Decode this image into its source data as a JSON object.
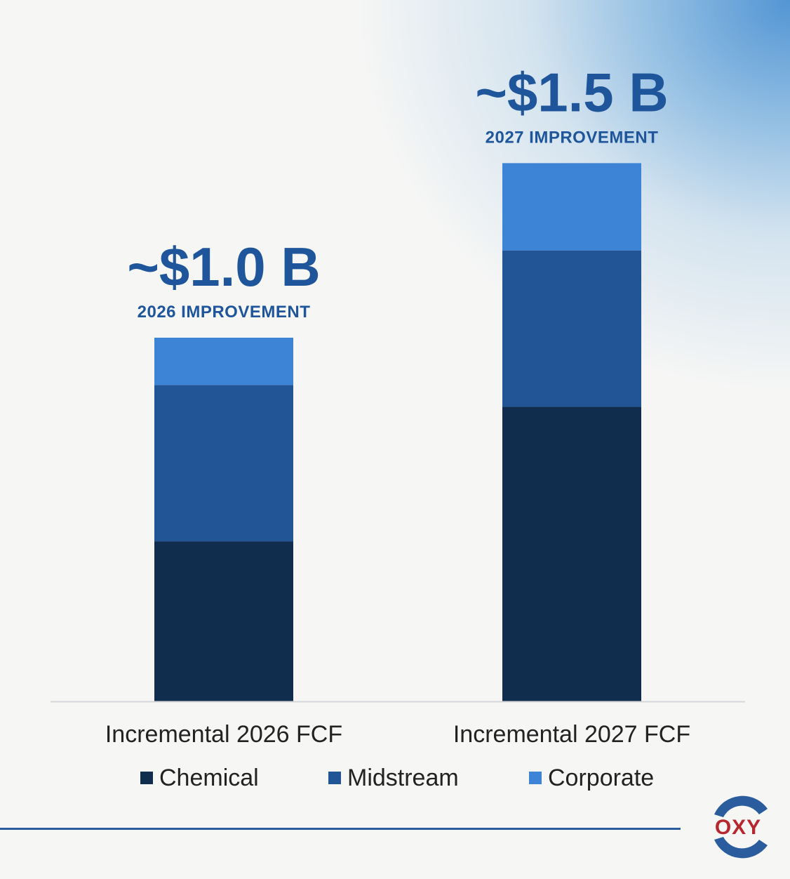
{
  "chart_data": {
    "type": "bar",
    "stacked": true,
    "categories": [
      "Incremental 2026 FCF",
      "Incremental 2027 FCF"
    ],
    "series": [
      {
        "name": "Chemical",
        "color": "#112d4e",
        "values": [
          0.44,
          0.81
        ]
      },
      {
        "name": "Midstream",
        "color": "#215595",
        "values": [
          0.43,
          0.43
        ]
      },
      {
        "name": "Corporate",
        "color": "#3d84d7",
        "values": [
          0.13,
          0.24
        ]
      }
    ],
    "annotations": [
      {
        "value_label": "~$1.0 B",
        "caption": "2026 IMPROVEMENT"
      },
      {
        "value_label": "~$1.5 B",
        "caption": "2027 IMPROVEMENT"
      }
    ],
    "units": "$B",
    "ylim": [
      0,
      1.93
    ],
    "grid": false,
    "yaxis_visible": false,
    "legend_position": "bottom"
  },
  "brand": {
    "logo_text": "OXY",
    "logo_red": "#b7282e",
    "logo_blue": "#2a5c9e",
    "accent": "#1f559a"
  }
}
